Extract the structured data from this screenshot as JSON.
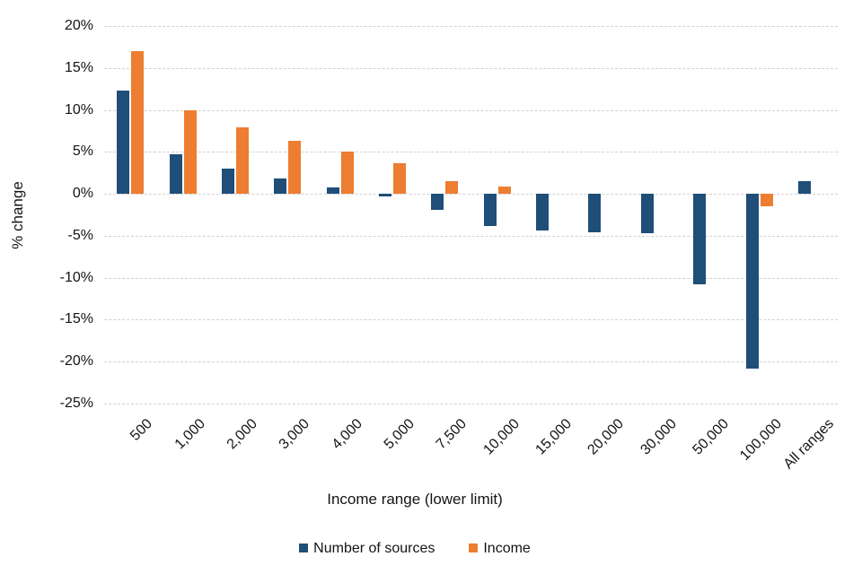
{
  "chart_data": {
    "type": "bar",
    "title": "",
    "xlabel": "Income range (lower limit)",
    "ylabel": "% change",
    "categories": [
      "500",
      "1,000",
      "2,000",
      "3,000",
      "4,000",
      "5,000",
      "7,500",
      "10,000",
      "15,000",
      "20,000",
      "30,000",
      "50,000",
      "100,000",
      "All ranges"
    ],
    "series": [
      {
        "name": "Number of sources",
        "color": "#1F4E79",
        "values": [
          12.3,
          4.7,
          3.0,
          1.8,
          0.8,
          -0.3,
          -1.9,
          -3.8,
          -4.4,
          -4.6,
          -4.7,
          -10.8,
          -20.8,
          1.5
        ]
      },
      {
        "name": "Income",
        "color": "#ED7D31",
        "values": [
          17.0,
          10.0,
          7.9,
          6.3,
          5.0,
          3.6,
          1.5,
          0.9,
          0,
          0,
          0,
          0,
          -1.5,
          0
        ]
      }
    ],
    "y_axis": {
      "min": -25,
      "max": 20,
      "step": 5,
      "tick_labels": [
        "20%",
        "15%",
        "10%",
        "5%",
        "0%",
        "-5%",
        "-10%",
        "-15%",
        "-20%",
        "-25%"
      ],
      "unit": "%"
    },
    "grid": true,
    "gridline_color": "#d2d2d2",
    "legend_position": "bottom",
    "background_color": "#ffffff"
  }
}
